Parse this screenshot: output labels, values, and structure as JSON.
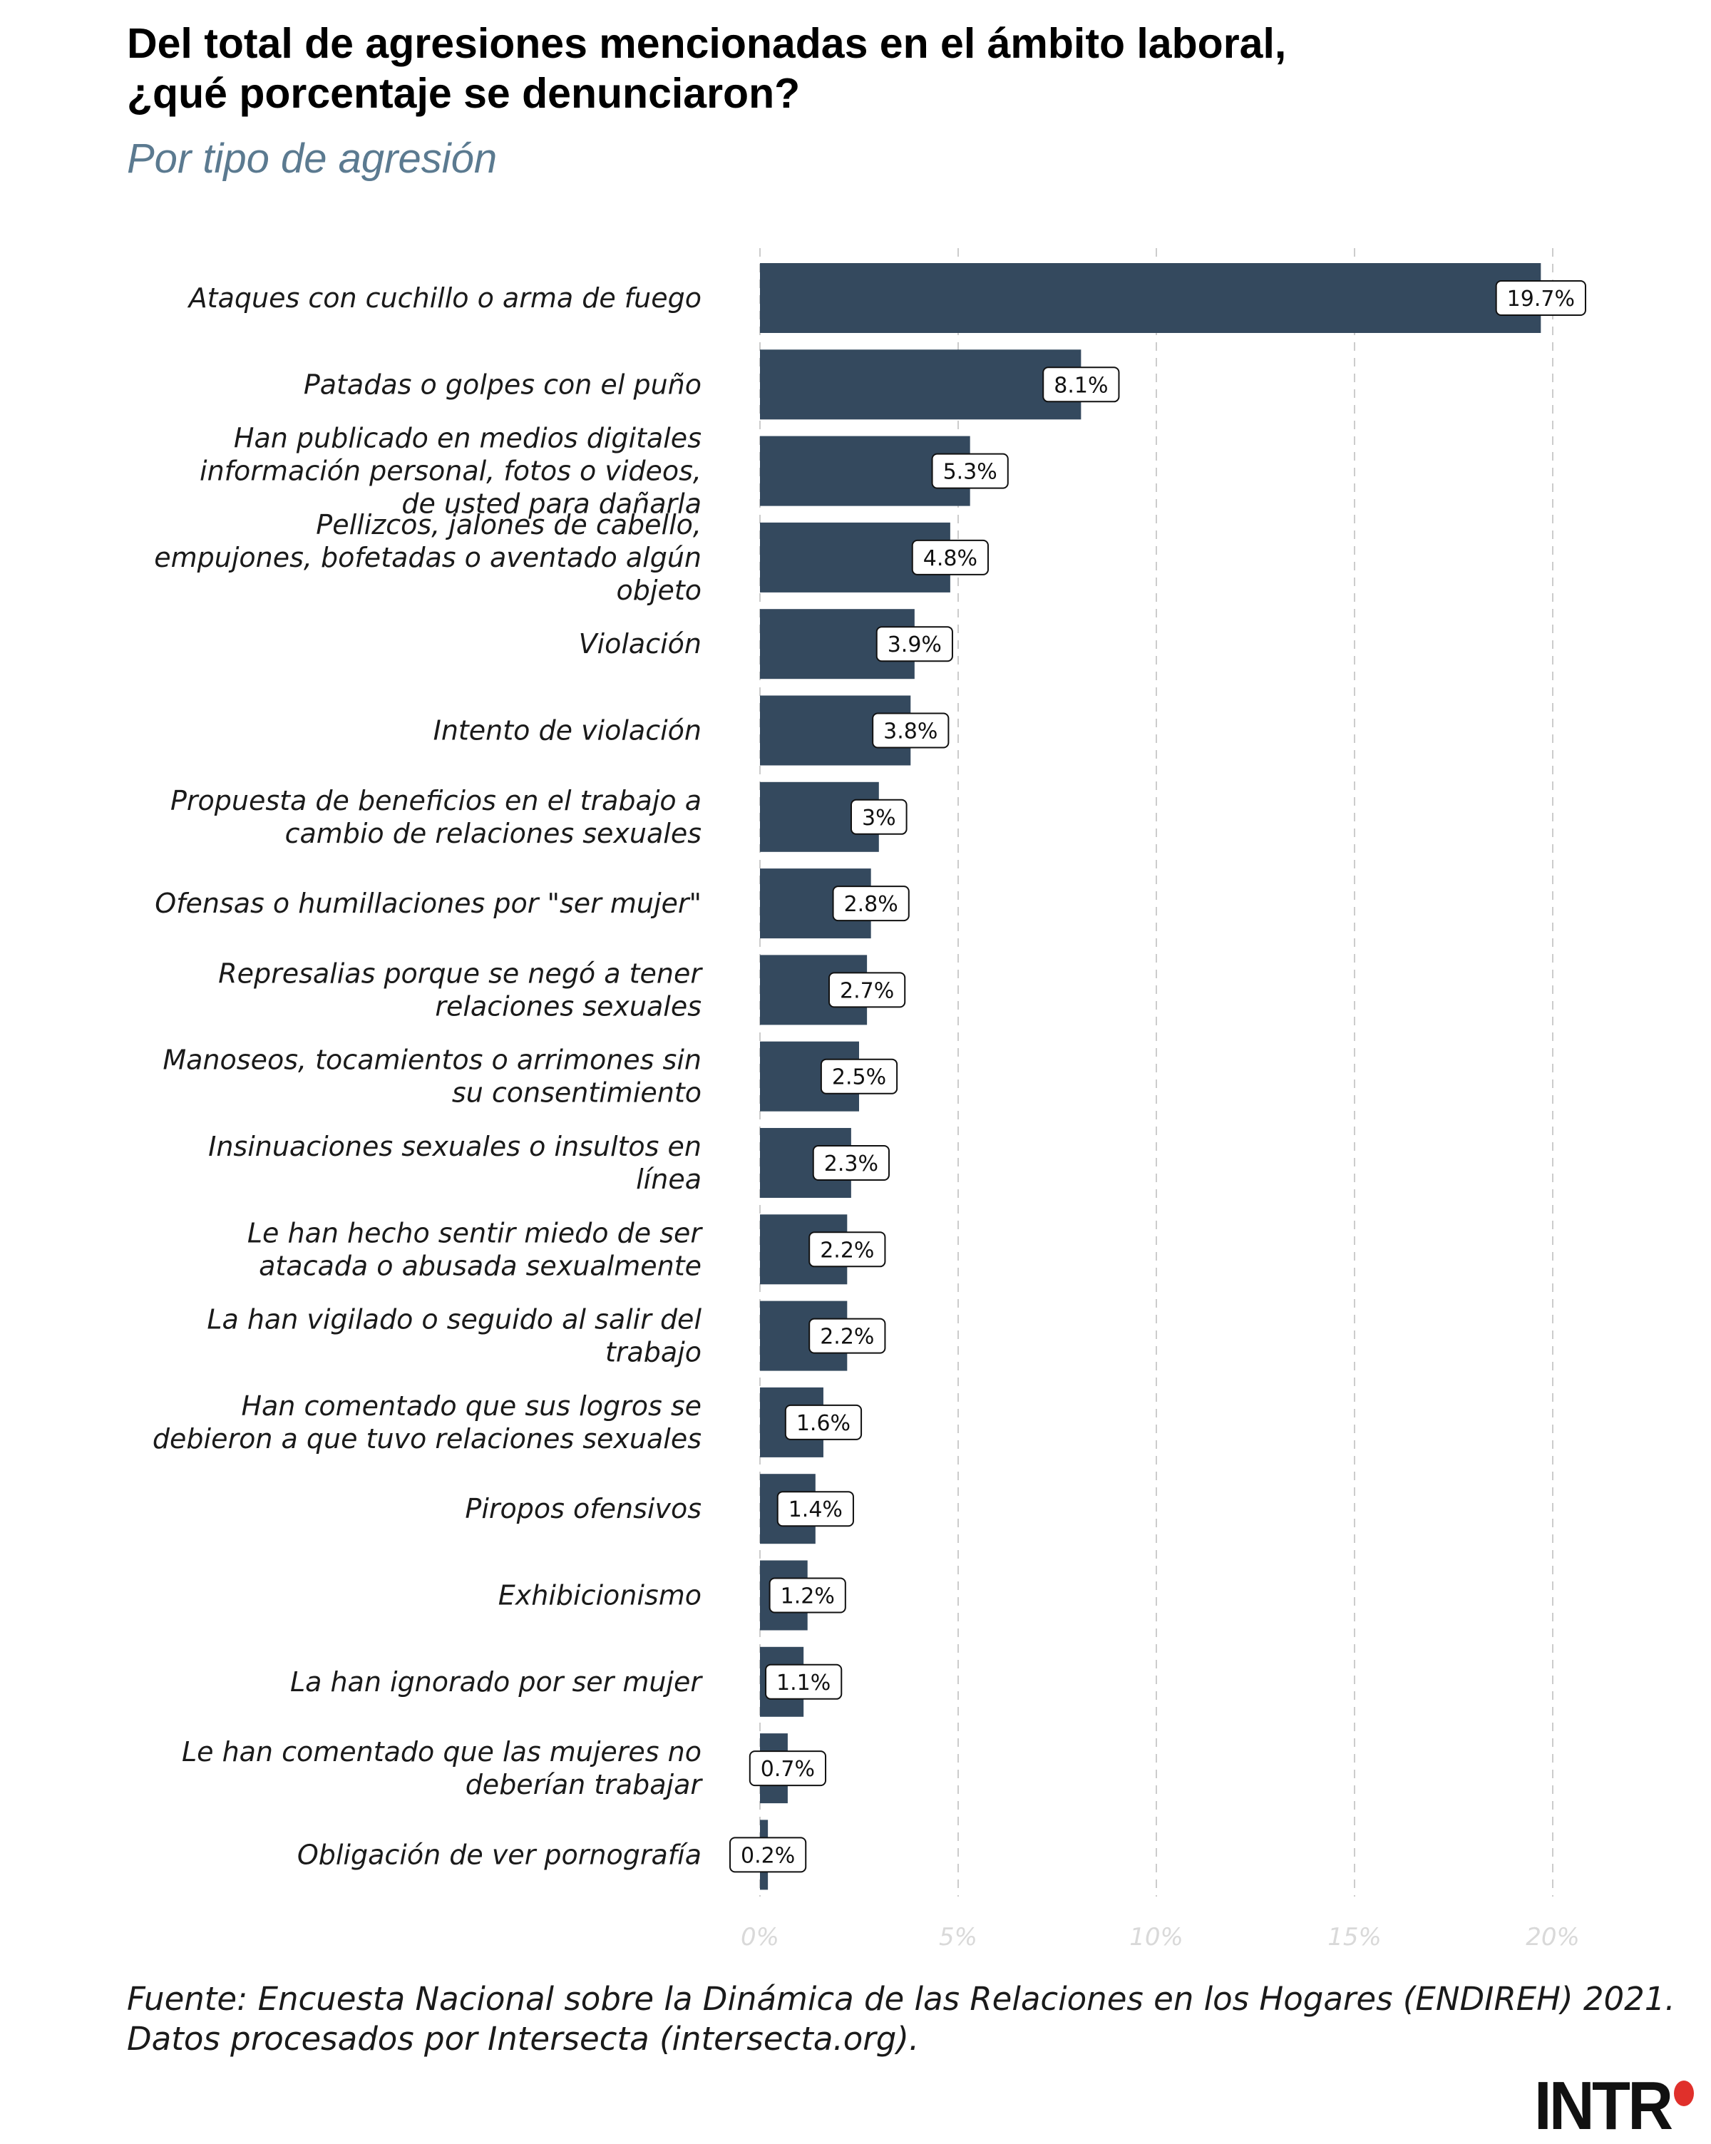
{
  "title_lines": [
    "Del total de agresiones mencionadas en el ámbito laboral,",
    "¿qué porcentaje se denunciaron?"
  ],
  "subtitle": "Por tipo de agresión",
  "source_lines": [
    "Fuente: Encuesta Nacional sobre la Dinámica de las Relaciones en los Hogares (ENDIREH) 2021.",
    "Datos procesados por Intersecta (intersecta.org)."
  ],
  "logo_text": "INTR",
  "colors": {
    "bar": "#34495e",
    "grid": "#cccccc",
    "logo_accent": "#e0302b"
  },
  "chart_data": {
    "type": "bar",
    "orientation": "horizontal",
    "categories": [
      [
        "Ataques con cuchillo o arma de fuego"
      ],
      [
        "Patadas o golpes con el puño"
      ],
      [
        "Han publicado en medios digitales",
        "información personal, fotos o videos,",
        "de usted para dañarla"
      ],
      [
        "Pellizcos, jalones de cabello,",
        "empujones, bofetadas o aventado algún",
        "objeto"
      ],
      [
        "Violación"
      ],
      [
        "Intento de violación"
      ],
      [
        "Propuesta de beneficios en el trabajo a",
        "cambio de relaciones sexuales"
      ],
      [
        "Ofensas o humillaciones por \"ser mujer\""
      ],
      [
        "Represalias porque se negó a tener",
        "relaciones sexuales"
      ],
      [
        "Manoseos, tocamientos o arrimones sin",
        "su consentimiento"
      ],
      [
        "Insinuaciones sexuales o insultos en",
        "línea"
      ],
      [
        "Le han hecho sentir miedo de ser",
        "atacada o abusada sexualmente"
      ],
      [
        "La han vigilado o seguido al salir del",
        "trabajo"
      ],
      [
        "Han comentado que sus logros se",
        "debieron a que tuvo relaciones sexuales"
      ],
      [
        "Piropos ofensivos"
      ],
      [
        "Exhibicionismo"
      ],
      [
        "La han ignorado por ser mujer"
      ],
      [
        "Le han comentado que las mujeres no",
        "deberían trabajar"
      ],
      [
        "Obligación de ver pornografía"
      ]
    ],
    "values": [
      19.7,
      8.1,
      5.3,
      4.8,
      3.9,
      3.8,
      3.0,
      2.8,
      2.7,
      2.5,
      2.3,
      2.2,
      2.2,
      1.6,
      1.4,
      1.2,
      1.1,
      0.7,
      0.2
    ],
    "data_labels": [
      "19.7%",
      "8.1%",
      "5.3%",
      "4.8%",
      "3.9%",
      "3.8%",
      "3%",
      "2.8%",
      "2.7%",
      "2.5%",
      "2.3%",
      "2.2%",
      "2.2%",
      "1.6%",
      "1.4%",
      "1.2%",
      "1.1%",
      "0.7%",
      "0.2%"
    ],
    "xlim": [
      0,
      20
    ],
    "x_ticks": [
      0,
      5,
      10,
      15,
      20
    ],
    "x_tick_labels": [
      "0%",
      "5%",
      "10%",
      "15%",
      "20%"
    ],
    "grid": "vertical dashed"
  }
}
